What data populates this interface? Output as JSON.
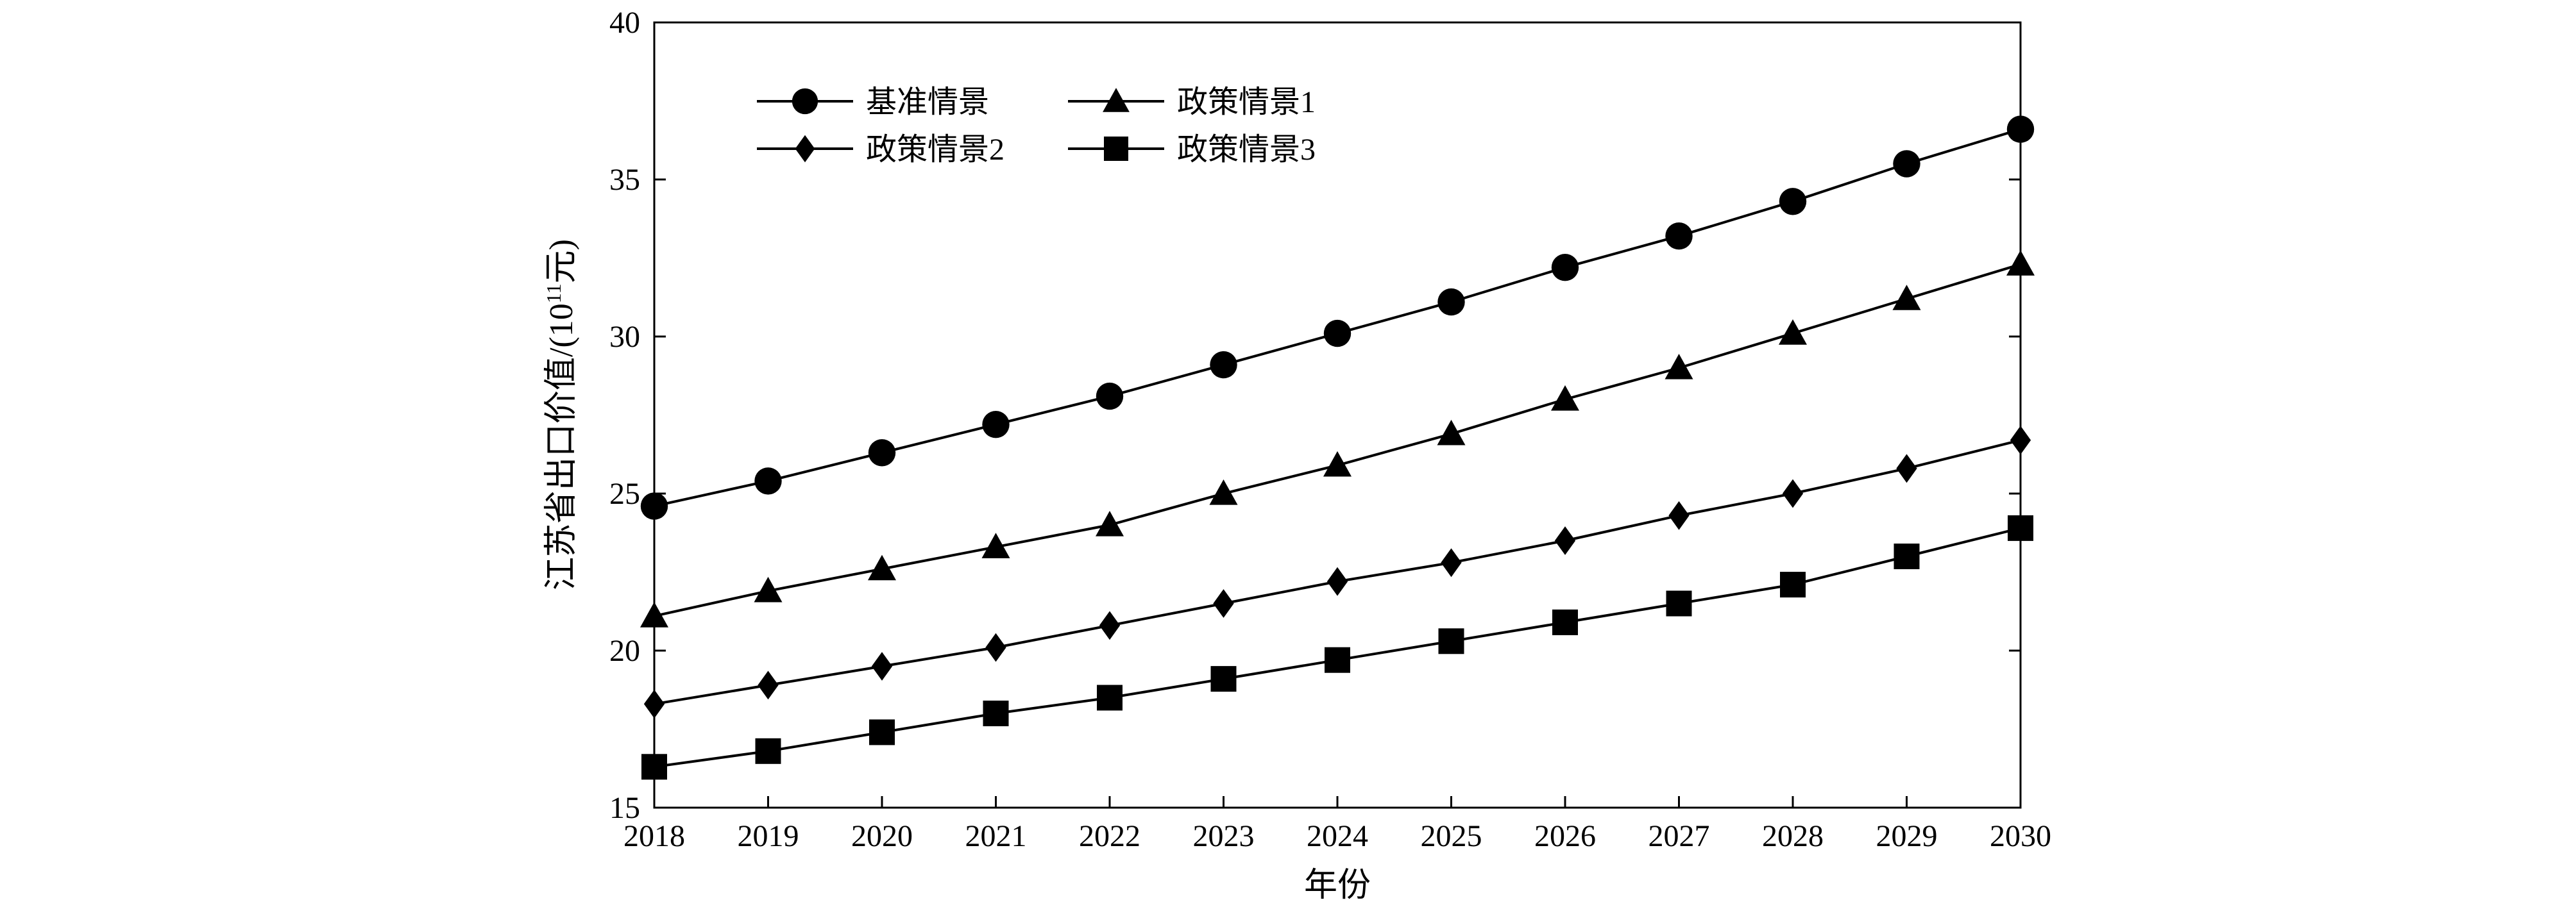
{
  "chart_data": {
    "type": "line",
    "title": "",
    "xlabel": "年份",
    "ylabel": "江苏省出口价值/(10¹¹元)",
    "ylabel_parts": {
      "prefix": "江苏省出口价值/(10",
      "sup": "11",
      "suffix": "元)"
    },
    "x": [
      2018,
      2019,
      2020,
      2021,
      2022,
      2023,
      2024,
      2025,
      2026,
      2027,
      2028,
      2029,
      2030
    ],
    "xlim": [
      2018,
      2030
    ],
    "ylim": [
      15,
      40
    ],
    "yticks": [
      15,
      20,
      25,
      30,
      35,
      40
    ],
    "grid": false,
    "legend_position": "top-left",
    "series": [
      {
        "name": "基准情景",
        "marker": "circle",
        "color": "#000000",
        "values": [
          24.6,
          25.4,
          26.3,
          27.2,
          28.1,
          29.1,
          30.1,
          31.1,
          32.2,
          33.2,
          34.3,
          35.5,
          36.6
        ]
      },
      {
        "name": "政策情景1",
        "marker": "triangle",
        "color": "#000000",
        "values": [
          21.1,
          21.9,
          22.6,
          23.3,
          24.0,
          25.0,
          25.9,
          26.9,
          28.0,
          29.0,
          30.1,
          31.2,
          32.3
        ]
      },
      {
        "name": "政策情景2",
        "marker": "diamond",
        "color": "#000000",
        "values": [
          18.3,
          18.9,
          19.5,
          20.1,
          20.8,
          21.5,
          22.2,
          22.8,
          23.5,
          24.3,
          25.0,
          25.8,
          26.7
        ]
      },
      {
        "name": "政策情景3",
        "marker": "square",
        "color": "#000000",
        "values": [
          16.3,
          16.8,
          17.4,
          18.0,
          18.5,
          19.1,
          19.7,
          20.3,
          20.9,
          21.5,
          22.1,
          23.0,
          23.9
        ]
      }
    ]
  }
}
